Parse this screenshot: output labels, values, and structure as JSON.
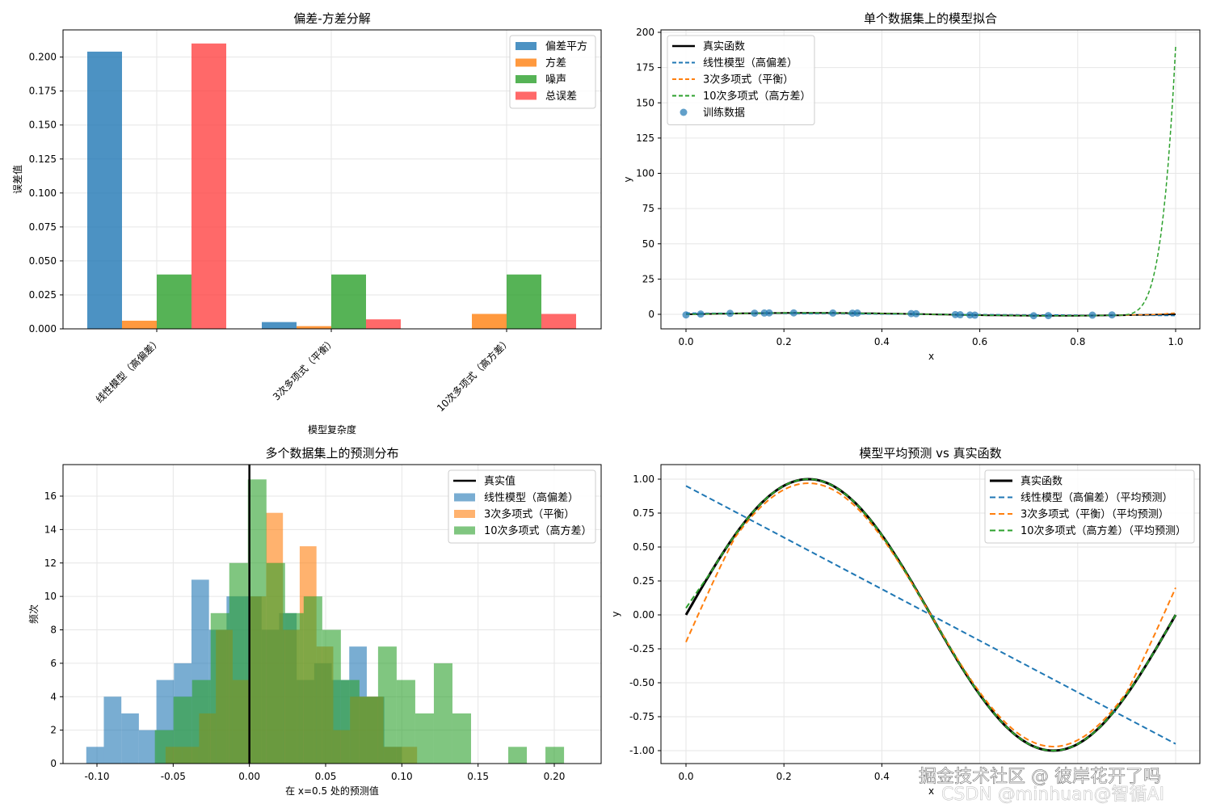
{
  "watermark": {
    "line1": "掘金技术社区 @ 彼岸花开了吗",
    "line2": "CSDN @minhuan@智循AI"
  },
  "chart_data": [
    {
      "type": "bar",
      "title": "偏差-方差分解",
      "xlabel": "模型复杂度",
      "ylabel": "误差值",
      "categories": [
        "线性模型（高偏差）",
        "3次多项式（平衡）",
        "10次多项式（高方差）"
      ],
      "ylim": [
        0,
        0.22
      ],
      "yticks": [
        "0.000",
        "0.025",
        "0.050",
        "0.075",
        "0.100",
        "0.125",
        "0.150",
        "0.175",
        "0.200"
      ],
      "grid": true,
      "legend": "top-right",
      "series": [
        {
          "name": "偏差平方",
          "color": "#1f77b4",
          "values": [
            0.204,
            0.005,
            0.0
          ]
        },
        {
          "name": "方差",
          "color": "#ff7f0e",
          "values": [
            0.006,
            0.002,
            0.011
          ]
        },
        {
          "name": "噪声",
          "color": "#2ca02c",
          "values": [
            0.04,
            0.04,
            0.04
          ]
        },
        {
          "name": "总误差",
          "color": "#ff4444",
          "values": [
            0.21,
            0.007,
            0.011
          ]
        }
      ]
    },
    {
      "type": "line",
      "title": "单个数据集上的模型拟合",
      "xlabel": "x",
      "ylabel": "y",
      "xlim": [
        -0.05,
        1.05
      ],
      "ylim": [
        -14,
        200
      ],
      "xticks": [
        "0.0",
        "0.2",
        "0.4",
        "0.6",
        "0.8",
        "1.0"
      ],
      "yticks": [
        "0",
        "25",
        "50",
        "75",
        "100",
        "125",
        "150",
        "175",
        "200"
      ],
      "grid": true,
      "legend": "top-left",
      "series": [
        {
          "name": "真实函数",
          "color": "#000000",
          "style": "solid"
        },
        {
          "name": "线性模型（高偏差）",
          "color": "#1f77b4",
          "style": "dashed"
        },
        {
          "name": "3次多项式（平衡）",
          "color": "#ff7f0e",
          "style": "dashed"
        },
        {
          "name": "10次多项式（高方差）",
          "color": "#2ca02c",
          "style": "dashed"
        },
        {
          "name": "训练数据",
          "color": "#1f77b4",
          "style": "scatter",
          "x": [
            0.0,
            0.03,
            0.09,
            0.14,
            0.16,
            0.17,
            0.22,
            0.3,
            0.34,
            0.35,
            0.46,
            0.47,
            0.55,
            0.56,
            0.58,
            0.59,
            0.71,
            0.74,
            0.83,
            0.87
          ],
          "y": [
            -0.4,
            0.2,
            0.7,
            0.8,
            0.9,
            1.0,
            1.0,
            0.9,
            0.8,
            0.9,
            0.5,
            0.4,
            -0.2,
            -0.3,
            -0.5,
            -0.6,
            -1.0,
            -0.9,
            -0.6,
            -0.4
          ]
        }
      ],
      "curve_10th_end": {
        "x": [
          0.86,
          0.9,
          0.94,
          0.97,
          1.0
        ],
        "y": [
          0,
          5,
          30,
          90,
          190
        ]
      }
    },
    {
      "type": "histogram",
      "title": "多个数据集上的预测分布",
      "xlabel": "在 x=0.5 处的预测值",
      "ylabel": "频次",
      "xlim": [
        -0.125,
        0.225
      ],
      "ylim": [
        0,
        17.8
      ],
      "xticks": [
        "-0.10",
        "-0.05",
        "0.00",
        "0.05",
        "0.10",
        "0.15",
        "0.20"
      ],
      "yticks": [
        "0",
        "2",
        "4",
        "6",
        "8",
        "10",
        "12",
        "14",
        "16"
      ],
      "grid": true,
      "legend": "top-right",
      "true_value": {
        "name": "真实值",
        "x": 0.0
      },
      "series": [
        {
          "name": "线性模型（高偏差）",
          "color": "#1f77b4",
          "bin_width": 0.0115,
          "bins_start": [
            -0.107,
            -0.0955,
            -0.084,
            -0.0725,
            -0.061,
            -0.0495,
            -0.038,
            -0.0265,
            -0.015,
            -0.0035,
            0.008,
            0.0195,
            0.031,
            0.0425,
            0.054,
            0.0655,
            0.077,
            0.0885
          ],
          "counts": [
            1,
            4,
            3,
            2,
            5,
            6,
            11,
            8,
            10,
            10,
            8,
            9,
            5,
            6,
            5,
            7,
            4,
            1
          ]
        },
        {
          "name": "3次多项式（平衡）",
          "color": "#ff7f0e",
          "bin_width": 0.011,
          "bins_start": [
            -0.055,
            -0.044,
            -0.033,
            -0.022,
            -0.011,
            0.0,
            0.011,
            0.022,
            0.033,
            0.044,
            0.055,
            0.066,
            0.077,
            0.088,
            0.099
          ],
          "counts": [
            1,
            1,
            3,
            8,
            5,
            10,
            15,
            8,
            13,
            7,
            2,
            4,
            4,
            1,
            1
          ]
        },
        {
          "name": "10次多项式（高方差）",
          "color": "#2ca02c",
          "bin_width": 0.0122,
          "bins_start": [
            -0.062,
            -0.0498,
            -0.0376,
            -0.0254,
            -0.0132,
            -0.001,
            0.0112,
            0.0234,
            0.0356,
            0.0478,
            0.06,
            0.0722,
            0.0844,
            0.0966,
            0.1088,
            0.121,
            0.1332,
            0.1454,
            0.1698,
            0.1942
          ],
          "counts": [
            2,
            4,
            5,
            9,
            12,
            17,
            12,
            9,
            10,
            8,
            5,
            4,
            7,
            5,
            3,
            6,
            3,
            0,
            1,
            1
          ]
        }
      ]
    },
    {
      "type": "line",
      "title": "模型平均预测 vs 真实函数",
      "xlabel": "x",
      "ylabel": "y",
      "xlim": [
        -0.05,
        1.05
      ],
      "ylim": [
        -1.1,
        1.1
      ],
      "xticks": [
        "0.0",
        "0.2",
        "0.4",
        "0.6",
        "0.8",
        "1.0"
      ],
      "yticks": [
        "1.00",
        "0.75",
        "0.50",
        "0.25",
        "0.00",
        "-0.25",
        "-0.50",
        "-0.75",
        "-1.00"
      ],
      "grid": true,
      "legend": "top-right",
      "series": [
        {
          "name": "真实函数",
          "color": "#000000",
          "style": "solid"
        },
        {
          "name": "线性模型（高偏差）（平均预测）",
          "color": "#1f77b4",
          "style": "dashed",
          "x": [
            0,
            1
          ],
          "y": [
            0.95,
            -0.95
          ]
        },
        {
          "name": "3次多项式（平衡）（平均预测）",
          "color": "#ff7f0e",
          "style": "dashed"
        },
        {
          "name": "10次多项式（高方差）（平均预测）",
          "color": "#2ca02c",
          "style": "dashed"
        }
      ]
    }
  ]
}
